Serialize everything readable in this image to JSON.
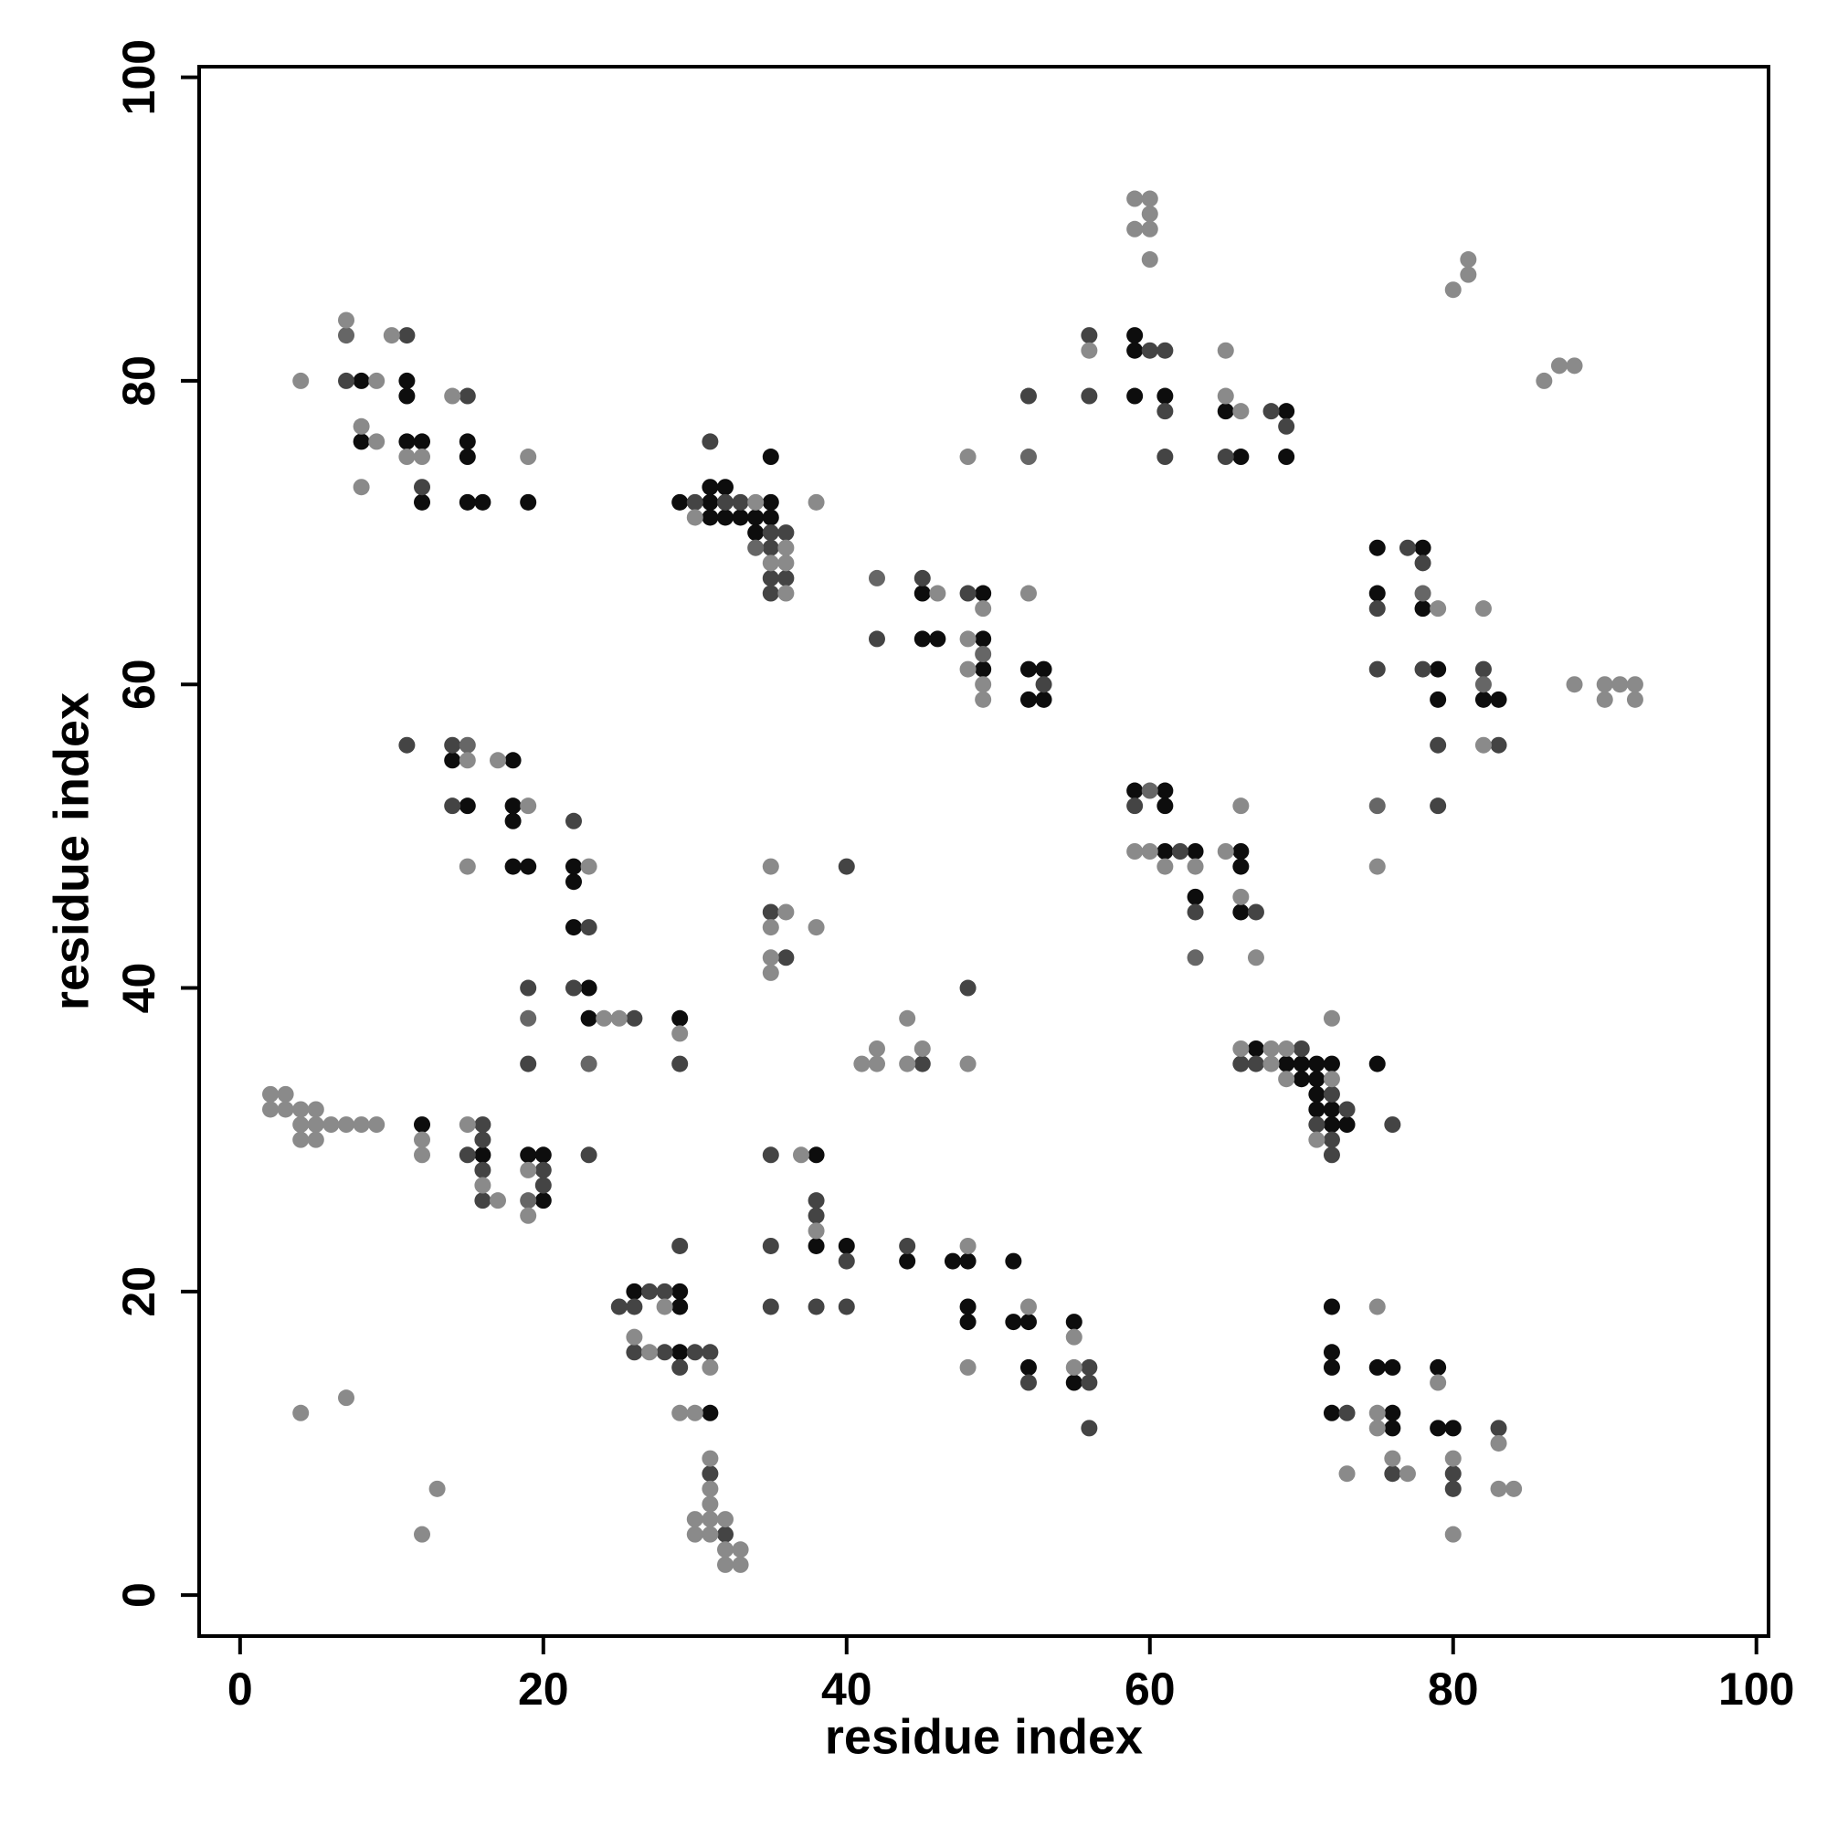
{
  "chart_data": {
    "type": "scatter",
    "xlabel": "residue index",
    "ylabel": "residue index",
    "xlim": [
      -2.7,
      100.8
    ],
    "ylim": [
      -2.7,
      100.7
    ],
    "xticks": [
      0,
      20,
      40,
      60,
      80,
      100
    ],
    "yticks": [
      0,
      20,
      40,
      60,
      80,
      100
    ],
    "series": [
      {
        "color": "#0d0d0d",
        "x": [
          8,
          8,
          11,
          11,
          11,
          12,
          12,
          15,
          15,
          15,
          16,
          19,
          29,
          31,
          31,
          31,
          32,
          32,
          33,
          34,
          34,
          35,
          35,
          35,
          45,
          45,
          46,
          49,
          49,
          49,
          52,
          53,
          52,
          53,
          59,
          59,
          59,
          61,
          65,
          66,
          69,
          69,
          75,
          75,
          78,
          78,
          79,
          79,
          82,
          83,
          14,
          18,
          15,
          18,
          18,
          18,
          19,
          22,
          22,
          22,
          23,
          23,
          29,
          59,
          61,
          61,
          61,
          63,
          66,
          66,
          63,
          66,
          67,
          69,
          70,
          71,
          72,
          70,
          71,
          71,
          71,
          72,
          72,
          73,
          75,
          12,
          16,
          19,
          20,
          20,
          38,
          38,
          40,
          26,
          29,
          29,
          29,
          31,
          44,
          47,
          48,
          51,
          48,
          48,
          51,
          52,
          52,
          55,
          55,
          72,
          72,
          72,
          75,
          76,
          79,
          72,
          76,
          76,
          79,
          80
        ],
        "y": [
          80,
          76,
          80,
          79,
          76,
          76,
          72,
          76,
          75,
          72,
          72,
          72,
          72,
          73,
          72,
          71,
          73,
          71,
          71,
          71,
          70,
          75,
          72,
          71,
          66,
          63,
          63,
          66,
          63,
          61,
          61,
          61,
          59,
          59,
          83,
          82,
          79,
          79,
          78,
          75,
          78,
          75,
          69,
          66,
          69,
          65,
          61,
          59,
          59,
          59,
          55,
          55,
          52,
          52,
          51,
          48,
          48,
          48,
          47,
          44,
          40,
          38,
          38,
          53,
          53,
          52,
          49,
          49,
          49,
          48,
          46,
          45,
          36,
          35,
          35,
          35,
          35,
          34,
          34,
          33,
          32,
          32,
          31,
          31,
          35,
          31,
          29,
          29,
          29,
          26,
          29,
          23,
          23,
          20,
          20,
          19,
          16,
          12,
          22,
          22,
          22,
          22,
          19,
          18,
          18,
          18,
          15,
          18,
          14,
          19,
          16,
          15,
          15,
          15,
          15,
          12,
          12,
          11,
          11,
          11
        ]
      },
      {
        "color": "#444444",
        "x": [
          7,
          11,
          12,
          15,
          30,
          31,
          32,
          33,
          35,
          35,
          35,
          35,
          36,
          36,
          42,
          45,
          48,
          53,
          52,
          56,
          56,
          60,
          61,
          61,
          61,
          65,
          68,
          69,
          75,
          75,
          77,
          78,
          78,
          79,
          79,
          82,
          83,
          11,
          14,
          14,
          22,
          23,
          22,
          26,
          19,
          19,
          29,
          35,
          36,
          40,
          45,
          48,
          59,
          62,
          63,
          67,
          70,
          66,
          67,
          72,
          73,
          71,
          72,
          72,
          76,
          16,
          16,
          15,
          16,
          16,
          20,
          20,
          23,
          35,
          38,
          38,
          35,
          40,
          35,
          38,
          40,
          25,
          26,
          27,
          28,
          29,
          26,
          28,
          30,
          31,
          29,
          31,
          32,
          44,
          52,
          56,
          56,
          56,
          73,
          76,
          80,
          80,
          83
        ],
        "y": [
          80,
          83,
          73,
          79,
          72,
          76,
          72,
          72,
          70,
          69,
          67,
          66,
          70,
          67,
          63,
          67,
          66,
          60,
          79,
          83,
          79,
          82,
          82,
          78,
          75,
          75,
          78,
          77,
          65,
          61,
          69,
          68,
          61,
          56,
          52,
          61,
          56,
          56,
          56,
          52,
          51,
          44,
          40,
          38,
          40,
          35,
          35,
          45,
          42,
          48,
          35,
          40,
          52,
          49,
          45,
          45,
          36,
          35,
          35,
          33,
          32,
          31,
          30,
          29,
          31,
          31,
          30,
          29,
          28,
          26,
          28,
          27,
          29,
          29,
          26,
          25,
          23,
          22,
          19,
          19,
          19,
          19,
          19,
          20,
          20,
          23,
          16,
          16,
          16,
          16,
          15,
          8,
          4,
          23,
          14,
          15,
          14,
          11,
          12,
          8,
          8,
          7,
          11
        ]
      },
      {
        "color": "#666666",
        "x": [
          7,
          34,
          42,
          49,
          52,
          78,
          82,
          75,
          15,
          19,
          23,
          60,
          63,
          19
        ],
        "y": [
          83,
          69,
          67,
          62,
          75,
          66,
          60,
          52,
          56,
          38,
          35,
          53,
          42,
          26
        ]
      },
      {
        "color": "#8a8a8a",
        "x": [
          4,
          7,
          9,
          8,
          9,
          8,
          10,
          11,
          12,
          14,
          19,
          30,
          34,
          35,
          36,
          36,
          36,
          38,
          46,
          48,
          48,
          49,
          48,
          49,
          49,
          52,
          56,
          59,
          60,
          60,
          59,
          60,
          60,
          65,
          65,
          66,
          80,
          81,
          81,
          86,
          87,
          88,
          75,
          79,
          82,
          82,
          88,
          90,
          91,
          92,
          90,
          92,
          15,
          17,
          19,
          15,
          23,
          24,
          25,
          29,
          35,
          36,
          35,
          35,
          35,
          38,
          41,
          42,
          42,
          44,
          44,
          45,
          48,
          59,
          60,
          61,
          63,
          65,
          66,
          66,
          67,
          66,
          68,
          69,
          68,
          69,
          72,
          71,
          72,
          2,
          3,
          2,
          3,
          4,
          5,
          4,
          5,
          6,
          7,
          8,
          9,
          4,
          5,
          12,
          12,
          15,
          16,
          17,
          19,
          19,
          37,
          38,
          28,
          26,
          27,
          31,
          29,
          30,
          31,
          31,
          31,
          31,
          30,
          32,
          30,
          31,
          32,
          33,
          32,
          33,
          4,
          7,
          13,
          12,
          48,
          52,
          48,
          55,
          55,
          75,
          79,
          75,
          75,
          76,
          77,
          80,
          83,
          83,
          84,
          80,
          73
        ],
        "y": [
          80,
          84,
          80,
          77,
          76,
          73,
          83,
          75,
          75,
          79,
          75,
          71,
          72,
          68,
          69,
          68,
          66,
          72,
          66,
          75,
          63,
          65,
          61,
          60,
          59,
          66,
          82,
          92,
          92,
          91,
          90,
          90,
          88,
          82,
          79,
          78,
          86,
          88,
          87,
          80,
          81,
          81,
          48,
          65,
          65,
          56,
          60,
          60,
          60,
          60,
          59,
          59,
          55,
          55,
          52,
          48,
          48,
          38,
          38,
          37,
          48,
          45,
          44,
          42,
          41,
          44,
          35,
          36,
          35,
          38,
          35,
          36,
          35,
          49,
          49,
          48,
          48,
          49,
          52,
          46,
          42,
          36,
          36,
          36,
          35,
          34,
          34,
          30,
          38,
          33,
          33,
          32,
          32,
          32,
          32,
          31,
          31,
          31,
          31,
          31,
          31,
          30,
          30,
          30,
          29,
          31,
          27,
          26,
          28,
          25,
          29,
          24,
          19,
          17,
          16,
          15,
          12,
          12,
          9,
          7,
          6,
          5,
          5,
          5,
          4,
          4,
          3,
          3,
          2,
          2,
          12,
          13,
          7,
          4,
          23,
          19,
          15,
          17,
          15,
          19,
          14,
          12,
          11,
          9,
          8,
          9,
          10,
          7,
          7,
          4,
          8
        ]
      }
    ]
  }
}
